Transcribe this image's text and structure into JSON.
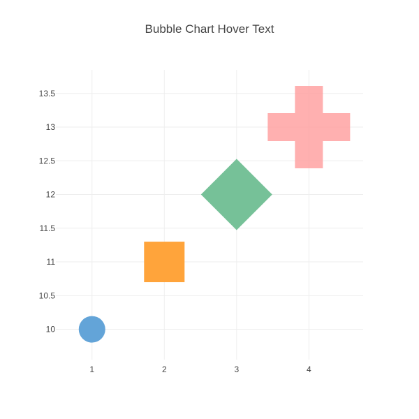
{
  "chart_data": {
    "type": "scatter",
    "title": "Bubble Chart Hover Text",
    "xlabel": "",
    "ylabel": "",
    "xlim": [
      0.5,
      4.75
    ],
    "ylim": [
      9.55,
      13.85
    ],
    "grid": true,
    "x_ticks": [
      "1",
      "2",
      "3",
      "4"
    ],
    "y_ticks": [
      "10",
      "10.5",
      "11",
      "11.5",
      "12",
      "12.5",
      "13",
      "13.5"
    ],
    "points": [
      {
        "x": 1,
        "y": 10,
        "symbol": "circle",
        "color": "#5b9fd6"
      },
      {
        "x": 2,
        "y": 11,
        "symbol": "square",
        "color": "#ff9f30"
      },
      {
        "x": 3,
        "y": 12,
        "symbol": "diamond",
        "color": "#6fbe92"
      },
      {
        "x": 4,
        "y": 13,
        "symbol": "cross",
        "color": "#ff9c9c"
      }
    ]
  }
}
